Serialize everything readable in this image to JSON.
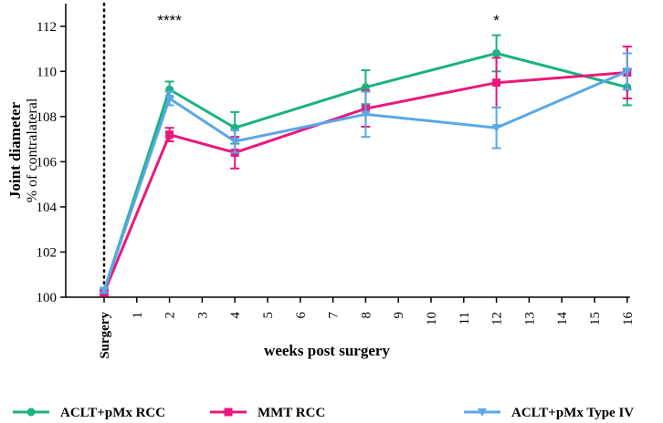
{
  "chart_data": {
    "type": "line",
    "ylabel_main": "Joint diameter",
    "ylabel_sub": "% of contralateral",
    "xlabel": "weeks post surgery",
    "ylim": [
      100,
      113
    ],
    "yticks": [
      100,
      102,
      104,
      106,
      108,
      110,
      112
    ],
    "categories": [
      "Surgery",
      "1",
      "2",
      "3",
      "4",
      "5",
      "6",
      "7",
      "8",
      "9",
      "10",
      "11",
      "12",
      "13",
      "14",
      "15",
      "16"
    ],
    "x_positions": [
      0,
      1,
      2,
      3,
      4,
      5,
      6,
      7,
      8,
      9,
      10,
      11,
      12,
      13,
      14,
      15,
      16
    ],
    "surgery_line_at": 0,
    "series": [
      {
        "name": "ACLT+pMx RCC",
        "color": "#1ab37f",
        "marker": "circle",
        "x": [
          0,
          2,
          4,
          8,
          12,
          16
        ],
        "y": [
          100.3,
          109.2,
          107.5,
          109.3,
          110.8,
          109.3
        ],
        "err": [
          0.1,
          0.35,
          0.7,
          0.75,
          0.8,
          0.8
        ]
      },
      {
        "name": "MMT RCC",
        "color": "#e8197a",
        "marker": "square",
        "x": [
          0,
          2,
          4,
          8,
          12,
          16
        ],
        "y": [
          100.2,
          107.2,
          106.4,
          108.35,
          109.5,
          109.95
        ],
        "err": [
          0.1,
          0.3,
          0.7,
          0.8,
          1.1,
          1.15
        ]
      },
      {
        "name": "ACLT+pMx Type IV",
        "color": "#5aa7e8",
        "marker": "triangle-down",
        "x": [
          0,
          2,
          4,
          8,
          12,
          16
        ],
        "y": [
          100.3,
          108.8,
          106.9,
          108.1,
          107.5,
          110.0
        ],
        "err": [
          0.1,
          0.3,
          0.5,
          1.0,
          0.9,
          0.8
        ]
      }
    ],
    "annotations": [
      {
        "x": 2,
        "text": "****"
      },
      {
        "x": 12,
        "text": "*"
      }
    ],
    "legend_position": "bottom"
  }
}
